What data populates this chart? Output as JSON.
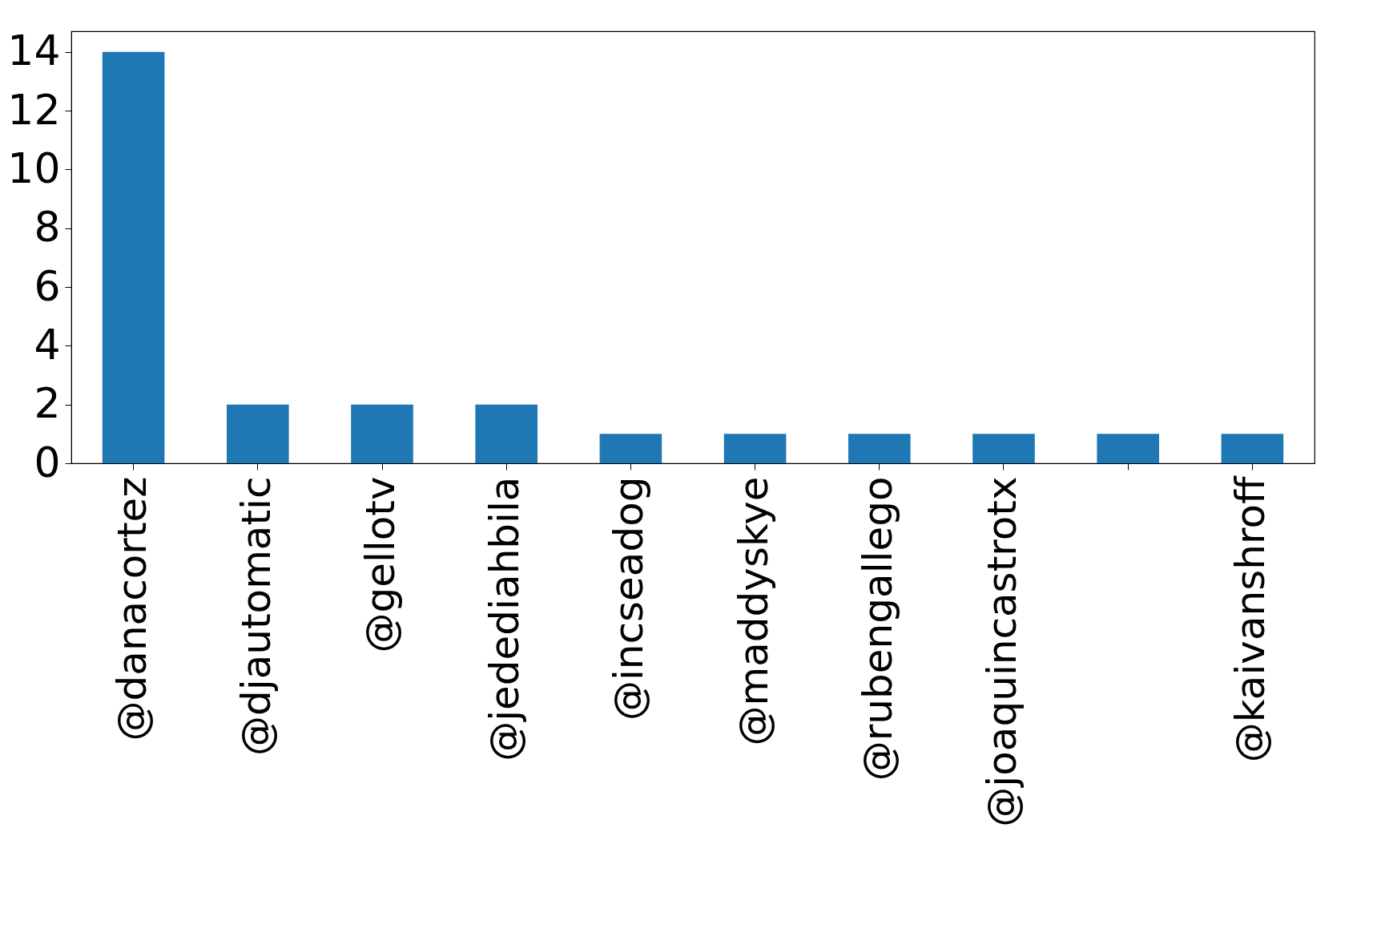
{
  "chart_data": {
    "type": "bar",
    "categories": [
      "@danacortez",
      "@djautomatic",
      "@gellotv",
      "@jedediahbila",
      "@incseadog",
      "@maddyskye",
      "@rubengallego",
      "@joaquincastrotx",
      null,
      "@kaivanshroff"
    ],
    "values": [
      14,
      2,
      2,
      2,
      1,
      1,
      1,
      1,
      1,
      1
    ],
    "color": "#1f77b4",
    "ylim": [
      0,
      14.7
    ],
    "yticks": [
      0,
      2,
      4,
      6,
      8,
      10,
      12,
      14
    ],
    "grid": false
  }
}
